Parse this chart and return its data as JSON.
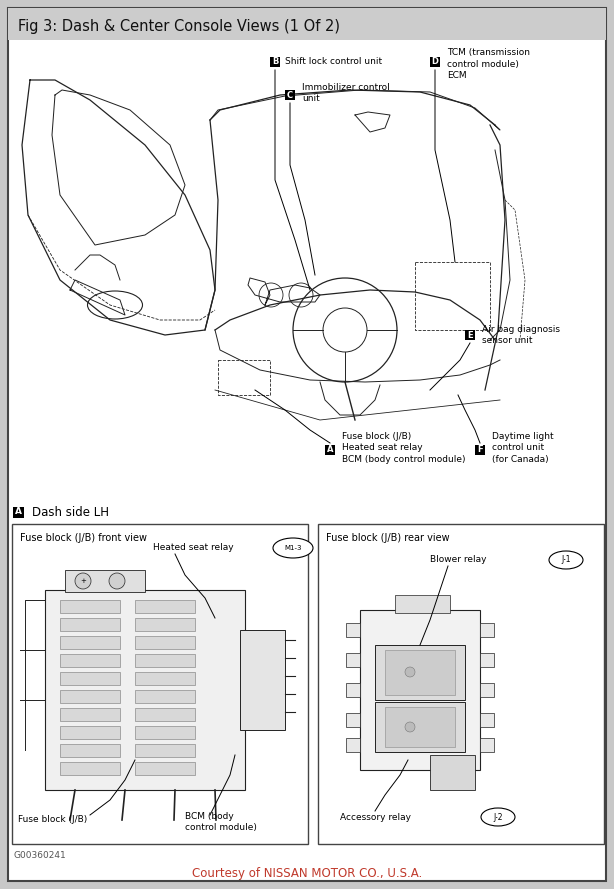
{
  "title": "Fig 3: Dash & Center Console Views (1 Of 2)",
  "title_bg": "#cccccc",
  "title_color": "#111111",
  "outer_bg": "#c8c8c8",
  "inner_bg": "#ffffff",
  "border_color": "#444444",
  "courtesy_text": "Courtesy of NISSAN MOTOR CO., U.S.A.",
  "courtesy_color": "#c0392b",
  "fig_width": 6.14,
  "fig_height": 8.89,
  "figure_code": "G00360241",
  "dpi": 100
}
